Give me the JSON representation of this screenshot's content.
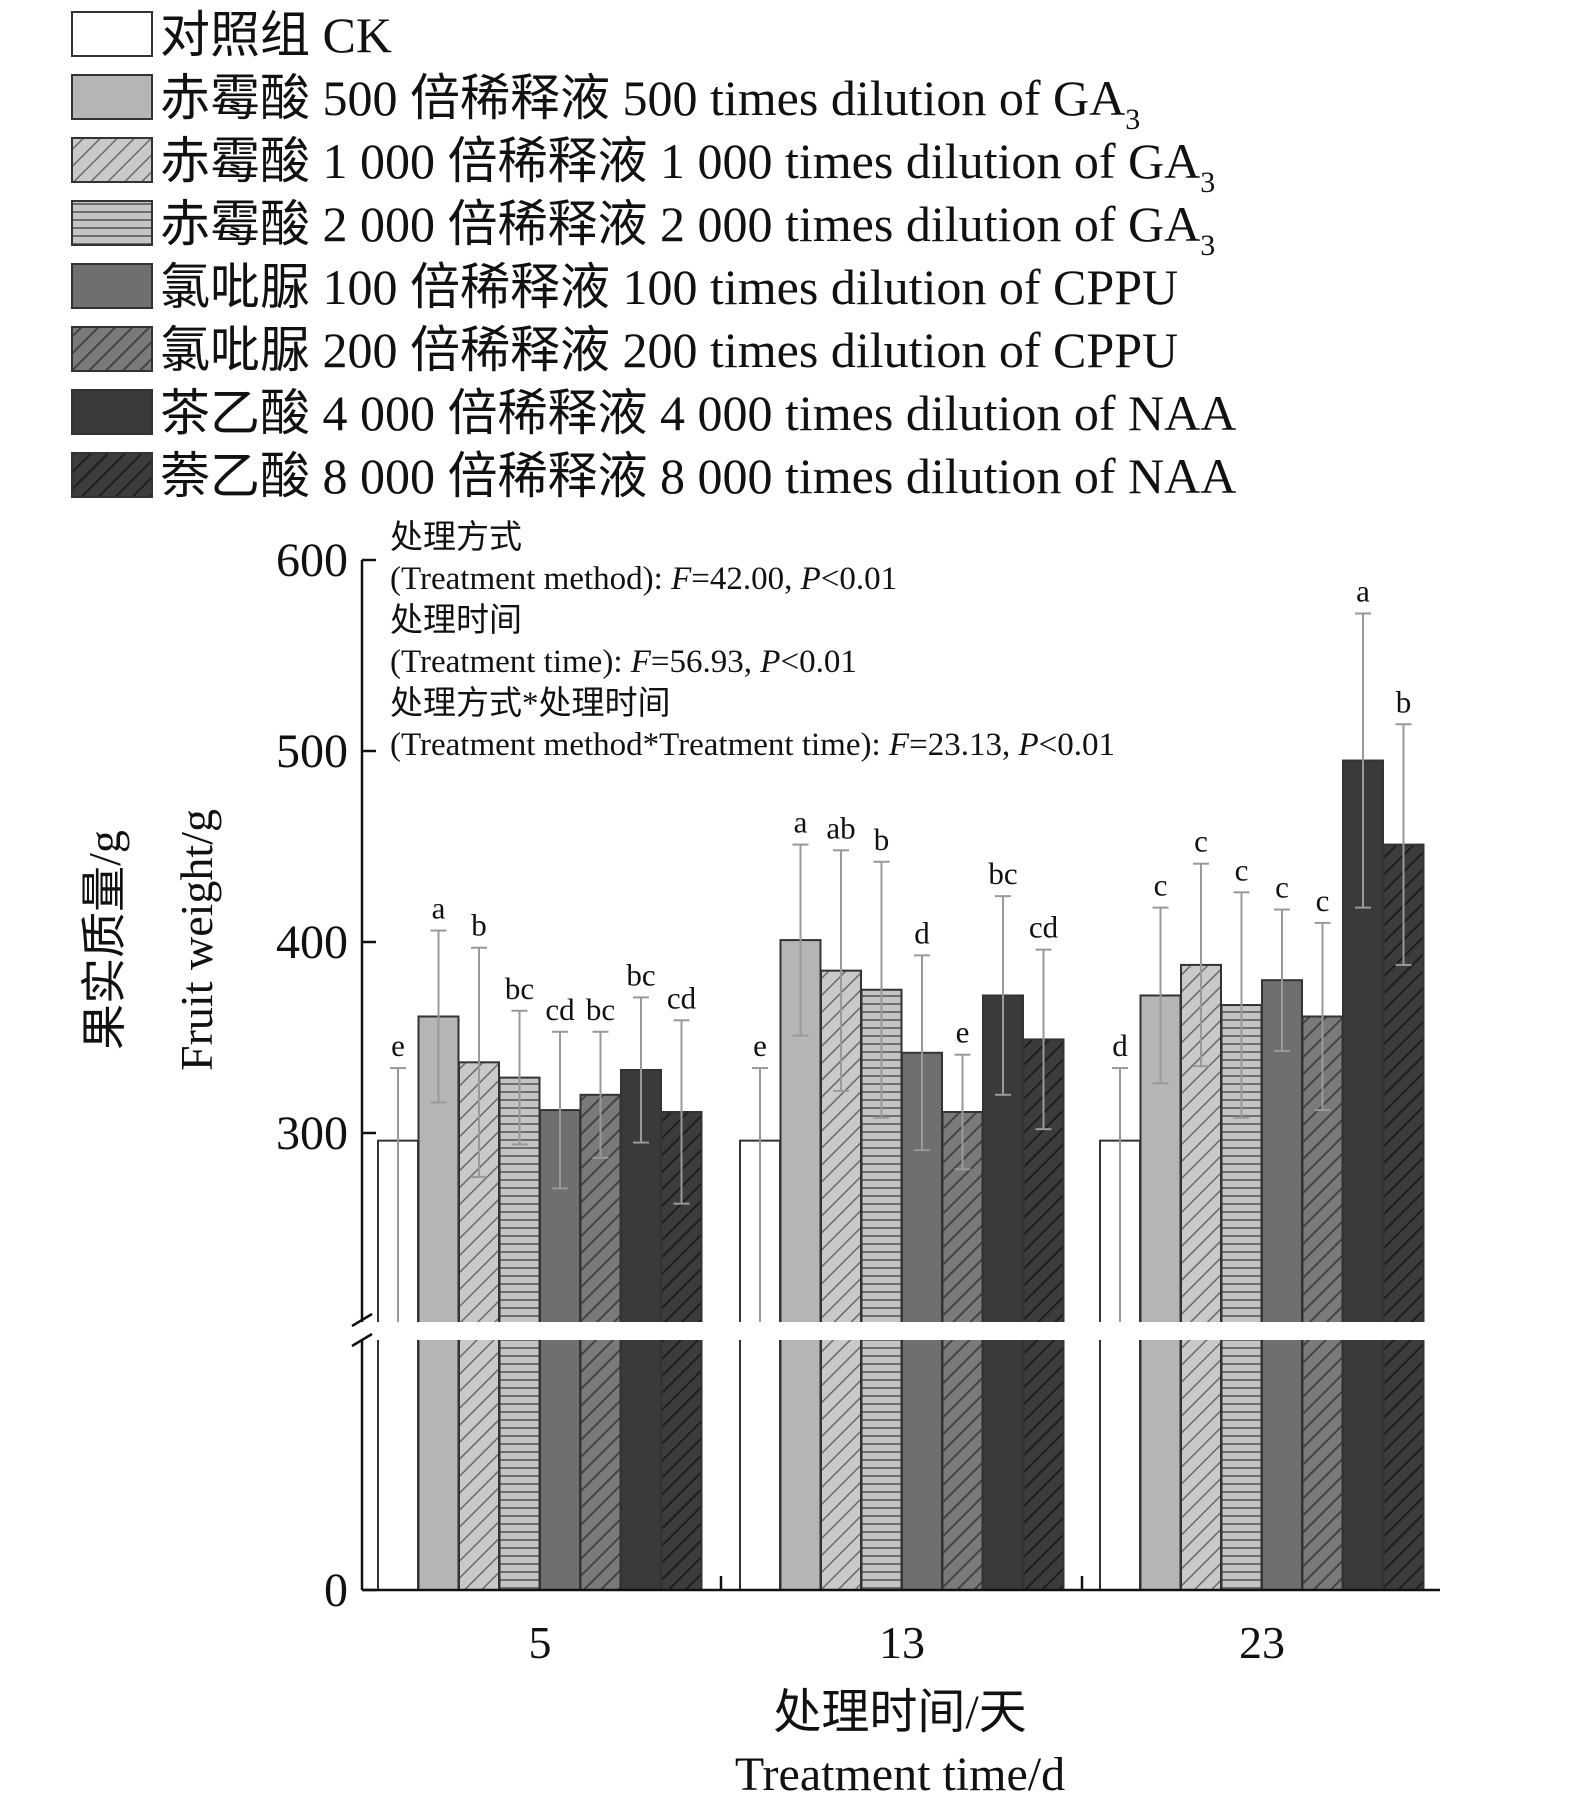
{
  "chart_data": {
    "type": "bar",
    "categories": [
      "5",
      "13",
      "23"
    ],
    "series": [
      {
        "name": "对照组 CK",
        "fill": "#ffffff",
        "pattern": "none",
        "values": [
          296,
          296,
          296
        ],
        "errors": [
          38,
          38,
          38
        ],
        "letters": [
          "e",
          "e",
          "d"
        ]
      },
      {
        "name": "赤霉酸 500 倍稀释液 500 times dilution of GA",
        "sub": "3",
        "fill": "#b5b5b5",
        "pattern": "none",
        "values": [
          361,
          401,
          372
        ],
        "errors": [
          45,
          50,
          46
        ],
        "letters": [
          "a",
          "a",
          "c"
        ]
      },
      {
        "name": "赤霉酸 1 000 倍稀释液 1 000 times dilution of GA",
        "sub": "3",
        "fill": "#b5b5b5",
        "pattern": "diagonal",
        "values": [
          337,
          385,
          388
        ],
        "errors": [
          60,
          63,
          53
        ],
        "letters": [
          "b",
          "ab",
          "c"
        ]
      },
      {
        "name": "赤霉酸 2 000 倍稀释液 2 000 times dilution of GA",
        "sub": "3",
        "fill": "#a8a8a8",
        "pattern": "horizontal",
        "values": [
          329,
          375,
          367
        ],
        "errors": [
          35,
          67,
          59
        ],
        "letters": [
          "bc",
          "b",
          "c"
        ]
      },
      {
        "name": "氯吡脲 100 倍稀释液 100 times dilution of CPPU",
        "fill": "#6f6f6f",
        "pattern": "none",
        "values": [
          312,
          342,
          380
        ],
        "errors": [
          41,
          51,
          37
        ],
        "letters": [
          "cd",
          "d",
          "c"
        ]
      },
      {
        "name": "氯吡脲 200 倍稀释液 200 times dilution of CPPU",
        "fill": "#6f6f6f",
        "pattern": "diagonal",
        "values": [
          320,
          311,
          361
        ],
        "errors": [
          33,
          30,
          49
        ],
        "letters": [
          "bc",
          "e",
          "c"
        ]
      },
      {
        "name": "茶乙酸 4 000 倍稀释液 4 000 times dilution of NAA",
        "fill": "#3a3a3a",
        "pattern": "none",
        "values": [
          333,
          372,
          495
        ],
        "errors": [
          38,
          52,
          77
        ],
        "letters": [
          "bc",
          "bc",
          "a"
        ]
      },
      {
        "name": "萘乙酸 8 000 倍稀释液 8 000 times dilution of NAA",
        "fill": "#3a3a3a",
        "pattern": "diagonal",
        "values": [
          311,
          349,
          451
        ],
        "errors": [
          48,
          47,
          63
        ],
        "letters": [
          "cd",
          "cd",
          "b"
        ]
      }
    ],
    "y_ticks": [
      "600",
      "500",
      "400",
      "300",
      "0"
    ],
    "y_tick_values": [
      600,
      500,
      400,
      300,
      0
    ],
    "ylim": [
      0,
      600
    ],
    "axis_break": [
      0,
      260
    ],
    "ylabel_cn": "果实质量/g",
    "ylabel_en": "Fruit weight/g",
    "xlabel_cn": "处理时间/天",
    "xlabel_en": "Treatment time/d",
    "legend_position": "top",
    "grid": false,
    "stats": [
      {
        "label_cn": "处理方式",
        "label_en": "(Treatment method): ",
        "f_letter": "F",
        "f": "=42.00, ",
        "p_letter": "P",
        "p": "<0.01"
      },
      {
        "label_cn": "处理时间",
        "label_en": "(Treatment time): ",
        "f_letter": "F",
        "f": "=56.93, ",
        "p_letter": "P",
        "p": "<0.01"
      },
      {
        "label_cn": "处理方式*处理时间",
        "label_en": "(Treatment method*Treatment time): ",
        "f_letter": "F",
        "f": "=23.13, ",
        "p_letter": "P",
        "p": "<0.01"
      }
    ]
  }
}
